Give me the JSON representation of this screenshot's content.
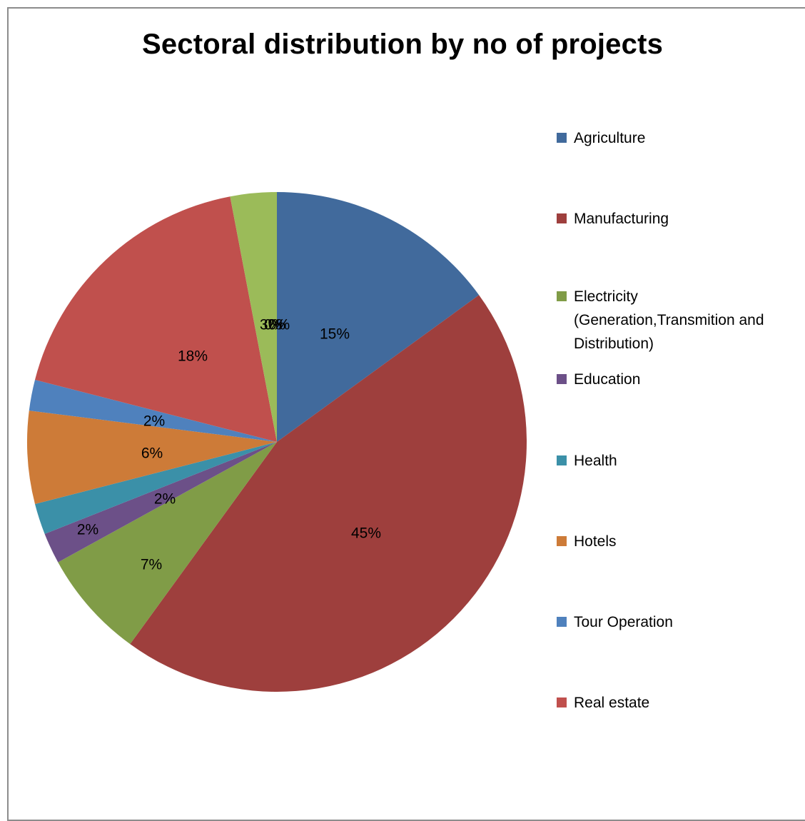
{
  "chart_data": {
    "type": "pie",
    "title": "Sectoral distribution by no of projects",
    "legend_position": "right",
    "slices": [
      {
        "name": "Agriculture",
        "value": 15,
        "label": "15%",
        "color": "#416a9c"
      },
      {
        "name": "Manufacturing",
        "value": 45,
        "label": "45%",
        "color": "#9e3f3d"
      },
      {
        "name": "Electricity\n(Generation,Transmition and\nDistribution)",
        "value": 7,
        "label": "7%",
        "color": "#809c47"
      },
      {
        "name": "Education",
        "value": 2,
        "label": "2%",
        "color": "#6c5088"
      },
      {
        "name": "Health",
        "value": 2,
        "label": "2%",
        "color": "#3b90a8"
      },
      {
        "name": "Hotels",
        "value": 6,
        "label": "6%",
        "color": "#cd7b38"
      },
      {
        "name": "Tour Operation",
        "value": 2,
        "label": "2%",
        "color": "#4f81bd"
      },
      {
        "name": "Real estate",
        "value": 18,
        "label": "18%",
        "color": "#c0504d"
      },
      {
        "name": "",
        "value": 3,
        "label": "3%",
        "color": "#9bbb59"
      },
      {
        "name": "",
        "value": 0,
        "label": "0%",
        "color": "#8064a2"
      },
      {
        "name": "",
        "value": 0,
        "label": "0%",
        "color": "#4bacc6"
      }
    ]
  }
}
